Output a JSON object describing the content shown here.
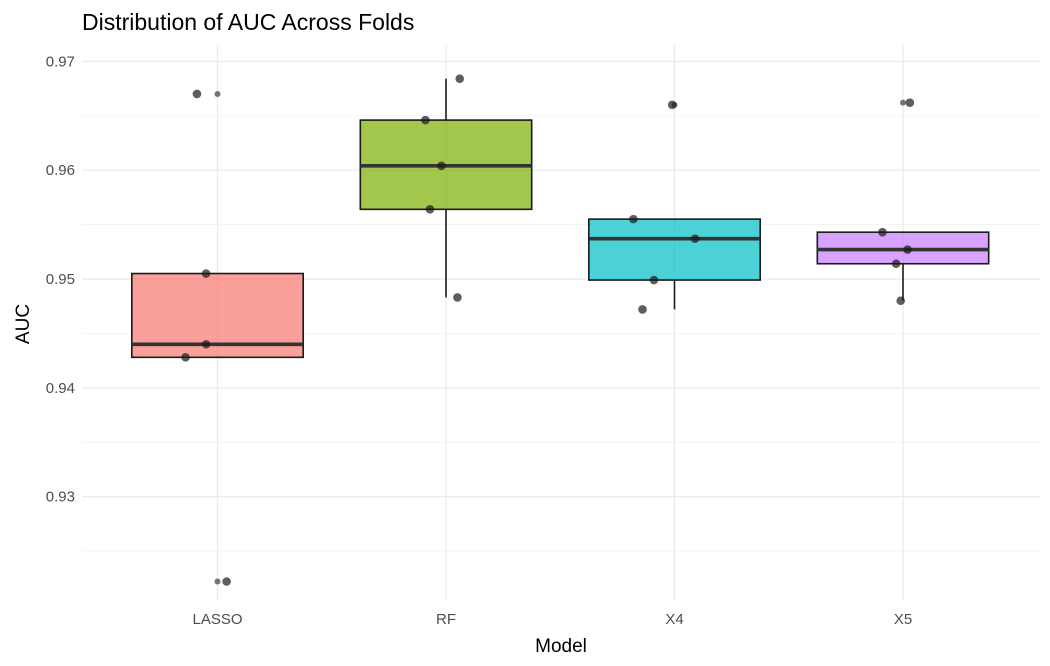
{
  "chart_data": {
    "type": "box",
    "title": "Distribution of AUC Across Folds",
    "xlabel": "Model",
    "ylabel": "AUC",
    "categories": [
      "LASSO",
      "RF",
      "X4",
      "X5"
    ],
    "ylim": [
      0.9205,
      0.9715
    ],
    "yticks": [
      0.93,
      0.94,
      0.95,
      0.96,
      0.97
    ],
    "ytick_labels": [
      "0.93",
      "0.94",
      "0.95",
      "0.96",
      "0.97"
    ],
    "grid": true,
    "legend": "none",
    "boxes": [
      {
        "name": "LASSO",
        "q1": 0.9428,
        "median": 0.944,
        "q3": 0.9505,
        "whisker_low": 0.9428,
        "whisker_high": 0.9505,
        "outliers": [
          0.967,
          0.9222
        ],
        "color": "#F8766D"
      },
      {
        "name": "RF",
        "q1": 0.9564,
        "median": 0.9604,
        "q3": 0.9646,
        "whisker_low": 0.9483,
        "whisker_high": 0.9684,
        "outliers": [],
        "color": "#7CAE00"
      },
      {
        "name": "X4",
        "q1": 0.9499,
        "median": 0.9537,
        "q3": 0.9555,
        "whisker_low": 0.9472,
        "whisker_high": 0.9555,
        "outliers": [
          0.966
        ],
        "color": "#00BFC4"
      },
      {
        "name": "X5",
        "q1": 0.9514,
        "median": 0.9527,
        "q3": 0.9543,
        "whisker_low": 0.948,
        "whisker_high": 0.9543,
        "outliers": [
          0.9662
        ],
        "color": "#C77CFF"
      }
    ],
    "points": [
      {
        "category": "LASSO",
        "values": [
          0.967,
          0.9505,
          0.944,
          0.9428,
          0.9222
        ],
        "jitter": [
          -0.09,
          -0.05,
          -0.05,
          -0.14,
          0.04
        ]
      },
      {
        "category": "RF",
        "values": [
          0.9684,
          0.9646,
          0.9604,
          0.9564,
          0.9483
        ],
        "jitter": [
          0.06,
          -0.09,
          -0.02,
          -0.07,
          0.05
        ]
      },
      {
        "category": "X4",
        "values": [
          0.966,
          0.9555,
          0.9537,
          0.9499,
          0.9472
        ],
        "jitter": [
          -0.01,
          -0.18,
          0.09,
          -0.09,
          -0.14
        ]
      },
      {
        "category": "X5",
        "values": [
          0.9662,
          0.9543,
          0.9527,
          0.9514,
          0.948
        ],
        "jitter": [
          0.03,
          -0.09,
          0.02,
          -0.03,
          -0.01
        ]
      }
    ]
  }
}
